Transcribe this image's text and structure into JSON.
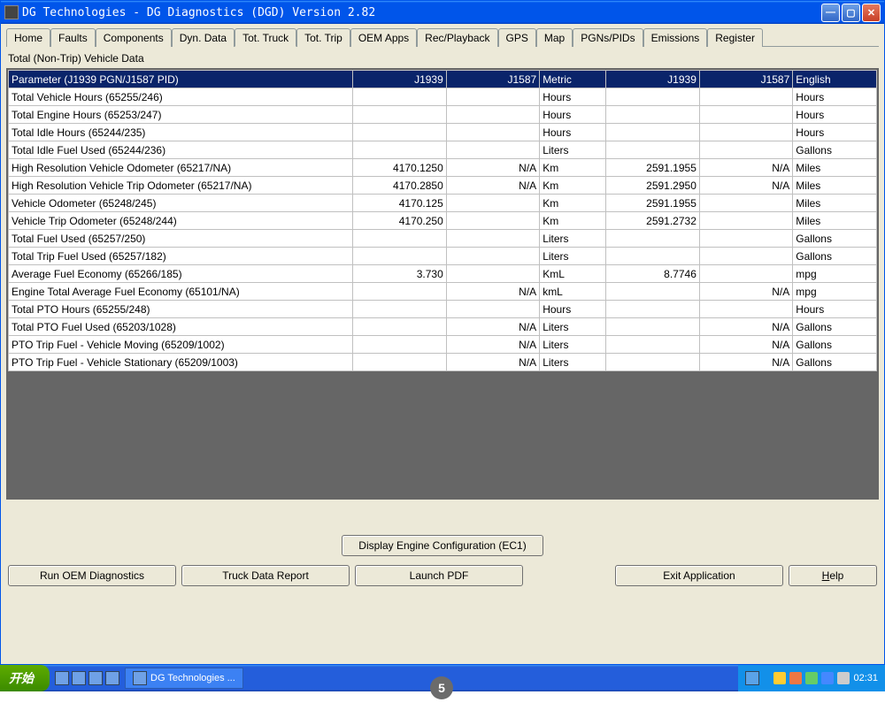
{
  "window": {
    "title": "DG Technologies - DG Diagnostics (DGD) Version 2.82",
    "subtitle": "Total (Non-Trip) Vehicle Data"
  },
  "tabs": [
    "Home",
    "Faults",
    "Components",
    "Dyn. Data",
    "Tot. Truck",
    "Tot. Trip",
    "OEM Apps",
    "Rec/Playback",
    "GPS",
    "Map",
    "PGNs/PIDs",
    "Emissions",
    "Register"
  ],
  "active_tab": 4,
  "grid": {
    "header": [
      "Parameter (J1939 PGN/J1587 PID)",
      "J1939",
      "J1587",
      "Metric",
      "J1939",
      "J1587",
      "English"
    ],
    "rows": [
      [
        "Total Vehicle Hours (65255/246)",
        "",
        "",
        "Hours",
        "",
        "",
        "Hours"
      ],
      [
        "Total Engine Hours (65253/247)",
        "",
        "",
        "Hours",
        "",
        "",
        "Hours"
      ],
      [
        "Total Idle Hours (65244/235)",
        "",
        "",
        "Hours",
        "",
        "",
        "Hours"
      ],
      [
        "Total Idle Fuel Used (65244/236)",
        "",
        "",
        "Liters",
        "",
        "",
        "Gallons"
      ],
      [
        "High Resolution Vehicle Odometer (65217/NA)",
        "4170.1250",
        "N/A",
        "Km",
        "2591.1955",
        "N/A",
        "Miles"
      ],
      [
        "High Resolution Vehicle Trip Odometer (65217/NA)",
        "4170.2850",
        "N/A",
        "Km",
        "2591.2950",
        "N/A",
        "Miles"
      ],
      [
        "Vehicle Odometer (65248/245)",
        "4170.125",
        "",
        "Km",
        "2591.1955",
        "",
        "Miles"
      ],
      [
        "Vehicle Trip Odometer (65248/244)",
        "4170.250",
        "",
        "Km",
        "2591.2732",
        "",
        "Miles"
      ],
      [
        "Total Fuel Used (65257/250)",
        "",
        "",
        "Liters",
        "",
        "",
        "Gallons"
      ],
      [
        "Total Trip Fuel Used (65257/182)",
        "",
        "",
        "Liters",
        "",
        "",
        "Gallons"
      ],
      [
        "Average Fuel Economy (65266/185)",
        "3.730",
        "",
        "KmL",
        "8.7746",
        "",
        "mpg"
      ],
      [
        "Engine Total Average Fuel Economy (65101/NA)",
        "",
        "N/A",
        "kmL",
        "",
        "N/A",
        "mpg"
      ],
      [
        "Total PTO Hours (65255/248)",
        "",
        "",
        "Hours",
        "",
        "",
        "Hours"
      ],
      [
        "Total PTO Fuel Used (65203/1028)",
        "",
        "N/A",
        "Liters",
        "",
        "N/A",
        "Gallons"
      ],
      [
        "PTO Trip Fuel - Vehicle Moving (65209/1002)",
        "",
        "N/A",
        "Liters",
        "",
        "N/A",
        "Gallons"
      ],
      [
        "PTO Trip Fuel - Vehicle Stationary (65209/1003)",
        "",
        "N/A",
        "Liters",
        "",
        "N/A",
        "Gallons"
      ]
    ]
  },
  "buttons": {
    "display_ec1": "Display Engine Configuration (EC1)",
    "run_oem": "Run OEM Diagnostics",
    "truck_report": "Truck Data Report",
    "launch_pdf": "Launch PDF",
    "exit": "Exit Application",
    "help": "Help"
  },
  "taskbar": {
    "start": "开始",
    "task": "DG Technologies ...",
    "time": "02:31"
  },
  "badge": "5"
}
